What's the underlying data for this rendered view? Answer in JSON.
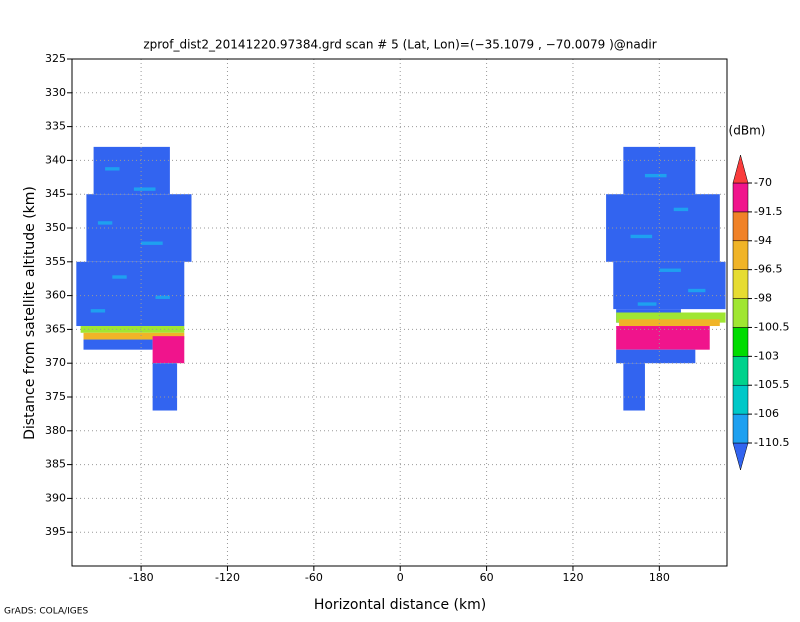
{
  "chart_data": {
    "type": "heatmap",
    "title": "zprof_dist2_20141220.97384.grd  scan # 5  (Lat, Lon)=(−35.1079 , −70.0079 )@nadir",
    "x_label": "Horizontal distance (km)",
    "y_label": "Distance from satellite altitude (km)",
    "colorbar_label": "(dBm)",
    "footer": "GrADS: COLA/IGES",
    "xlim": [
      -228,
      227
    ],
    "xticks": [
      -180,
      -120,
      -60,
      0,
      60,
      120,
      180
    ],
    "ylim": [
      325,
      400
    ],
    "yticks": [
      325,
      330,
      335,
      340,
      345,
      350,
      355,
      360,
      365,
      370,
      375,
      380,
      385,
      390,
      395
    ],
    "y_inverted": true,
    "grid": true,
    "levels": [
      -110.5,
      -106,
      -105.5,
      -103,
      -100.5,
      -98,
      -96.5,
      -94,
      -91.5,
      -70
    ],
    "colors": [
      "#3264f0",
      "#1ea0f0",
      "#00c8c8",
      "#00d28c",
      "#00dc00",
      "#a0e632",
      "#e6dc32",
      "#f0b428",
      "#f08228",
      "#f0148c",
      "#fa3c3c"
    ],
    "cells": [
      {
        "x": [
          -213,
          -160
        ],
        "y": [
          338,
          345
        ],
        "value": -112
      },
      {
        "x": [
          -218,
          -145
        ],
        "y": [
          345,
          355
        ],
        "value": -112
      },
      {
        "x": [
          -225,
          -150
        ],
        "y": [
          355,
          364.5
        ],
        "value": -112
      },
      {
        "x": [
          -222,
          -150
        ],
        "y": [
          364.5,
          365.5
        ],
        "value": -99
      },
      {
        "x": [
          -220,
          -150
        ],
        "y": [
          365.5,
          366.5
        ],
        "value": -95
      },
      {
        "x": [
          -220,
          -172
        ],
        "y": [
          366.5,
          368
        ],
        "value": -112
      },
      {
        "x": [
          -172,
          -150
        ],
        "y": [
          366,
          370
        ],
        "value": -85
      },
      {
        "x": [
          -172,
          -155
        ],
        "y": [
          370,
          377
        ],
        "value": -112
      },
      {
        "x": [
          155,
          205
        ],
        "y": [
          338,
          345
        ],
        "value": -112
      },
      {
        "x": [
          143,
          222
        ],
        "y": [
          345,
          355
        ],
        "value": -112
      },
      {
        "x": [
          148,
          226
        ],
        "y": [
          355,
          362
        ],
        "value": -112
      },
      {
        "x": [
          150,
          195
        ],
        "y": [
          362,
          364
        ],
        "value": -112
      },
      {
        "x": [
          150,
          226
        ],
        "y": [
          362.5,
          364
        ],
        "value": -99
      },
      {
        "x": [
          152,
          222
        ],
        "y": [
          363.5,
          364.5
        ],
        "value": -95
      },
      {
        "x": [
          150,
          215
        ],
        "y": [
          364.5,
          368
        ],
        "value": -85
      },
      {
        "x": [
          150,
          205
        ],
        "y": [
          368,
          370
        ],
        "value": -112
      },
      {
        "x": [
          155,
          170
        ],
        "y": [
          370,
          377
        ],
        "value": -112
      },
      {
        "x": [
          -205,
          -195
        ],
        "y": [
          341,
          341.5
        ],
        "value": -108
      },
      {
        "x": [
          -185,
          -170
        ],
        "y": [
          344,
          344.5
        ],
        "value": -108
      },
      {
        "x": [
          -210,
          -200
        ],
        "y": [
          349,
          349.5
        ],
        "value": -108
      },
      {
        "x": [
          -180,
          -165
        ],
        "y": [
          352,
          352.5
        ],
        "value": -108
      },
      {
        "x": [
          -200,
          -190
        ],
        "y": [
          357,
          357.5
        ],
        "value": -108
      },
      {
        "x": [
          -170,
          -160
        ],
        "y": [
          360,
          360.5
        ],
        "value": -108
      },
      {
        "x": [
          -215,
          -205
        ],
        "y": [
          362,
          362.5
        ],
        "value": -108
      },
      {
        "x": [
          170,
          185
        ],
        "y": [
          342,
          342.5
        ],
        "value": -108
      },
      {
        "x": [
          190,
          200
        ],
        "y": [
          347,
          347.5
        ],
        "value": -108
      },
      {
        "x": [
          160,
          175
        ],
        "y": [
          351,
          351.5
        ],
        "value": -108
      },
      {
        "x": [
          180,
          195
        ],
        "y": [
          356,
          356.5
        ],
        "value": -108
      },
      {
        "x": [
          200,
          212
        ],
        "y": [
          359,
          359.5
        ],
        "value": -108
      },
      {
        "x": [
          165,
          178
        ],
        "y": [
          361,
          361.5
        ],
        "value": -108
      }
    ]
  }
}
